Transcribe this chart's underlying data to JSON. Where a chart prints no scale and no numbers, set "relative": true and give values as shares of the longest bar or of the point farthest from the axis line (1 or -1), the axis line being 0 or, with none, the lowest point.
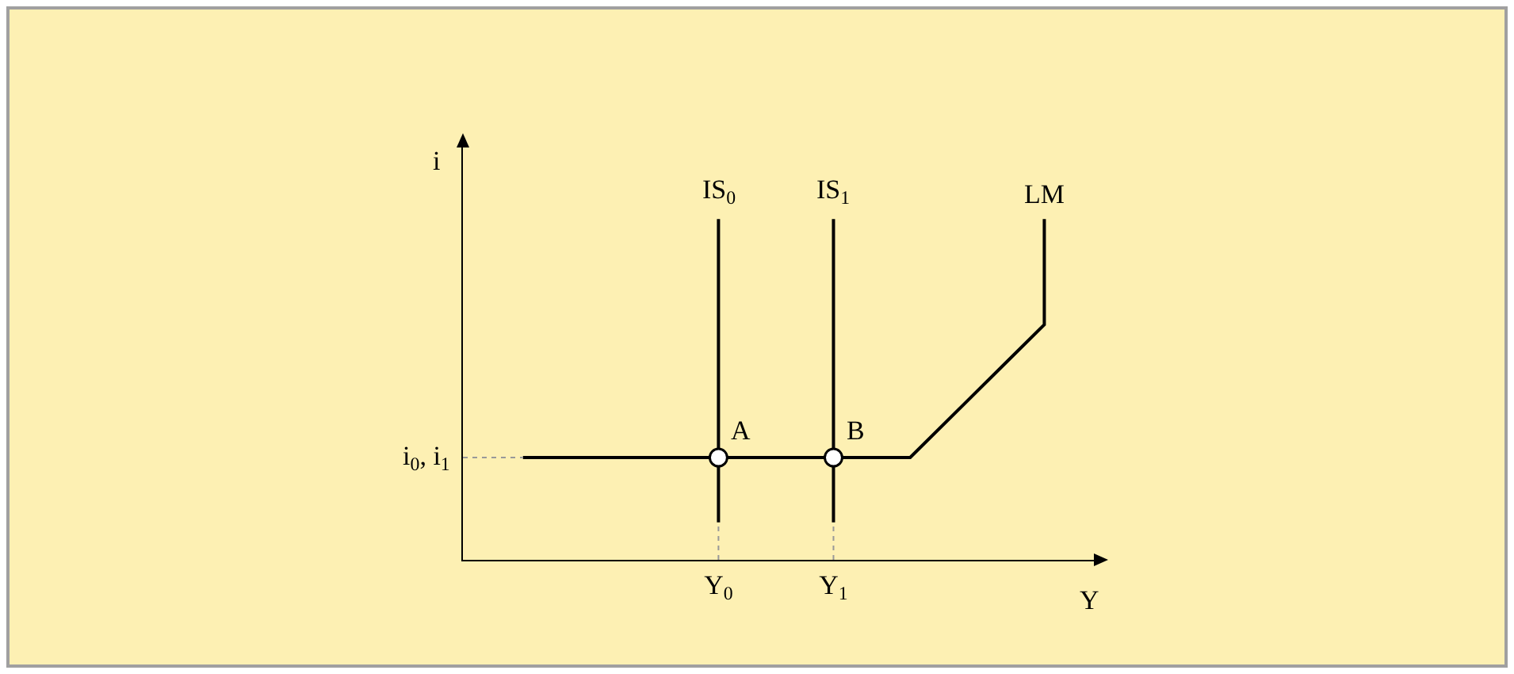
{
  "chart_data": {
    "type": "line",
    "relative": true,
    "xlabel": "Y",
    "ylabel": "i",
    "xlim": [
      0,
      1
    ],
    "xticks": [
      {
        "value": 0.4,
        "label": "Y$_{0}$"
      },
      {
        "value": 0.58,
        "label": "Y$_{1}$"
      }
    ],
    "series": [
      {
        "name": "IS$_{0}$",
        "color": "#000000",
        "x": [
          0.4,
          0.4
        ],
        "values": [
          0.11,
          1
        ]
      },
      {
        "name": "IS$_{1}$",
        "color": "#000000",
        "x": [
          0.58,
          0.58
        ],
        "values": [
          0.11,
          1
        ]
      },
      {
        "name": "LM",
        "color": "#000000",
        "x": [
          0.094,
          0.7,
          0.91,
          0.91
        ],
        "values": [
          0.3,
          0.3,
          0.69,
          1
        ]
      },
      {
        "color": "#999999",
        "line_style": "dotted",
        "x": [
          0,
          0.094
        ],
        "values": [
          0.3,
          0.3
        ]
      },
      {
        "color": "#999999",
        "line_style": "dotted",
        "x": [
          0.4,
          0.4
        ],
        "values": [
          0,
          0.11
        ]
      },
      {
        "color": "#999999",
        "line_style": "dotted",
        "x": [
          0.58,
          0.58
        ],
        "values": [
          0,
          0.11
        ]
      },
      {
        "type": "scatter",
        "marker": "circle",
        "color": "#000000",
        "x": [
          0.4,
          0.58
        ],
        "values": [
          0.3,
          0.3
        ]
      }
    ],
    "annotations": [
      {
        "text": "A",
        "x": 0.4,
        "y": 0.3
      },
      {
        "text": "B",
        "x": 0.58,
        "y": 0.3
      },
      {
        "text": "i$_{0}$, i$_{1}$",
        "x": 0,
        "y": 0.3
      }
    ]
  }
}
